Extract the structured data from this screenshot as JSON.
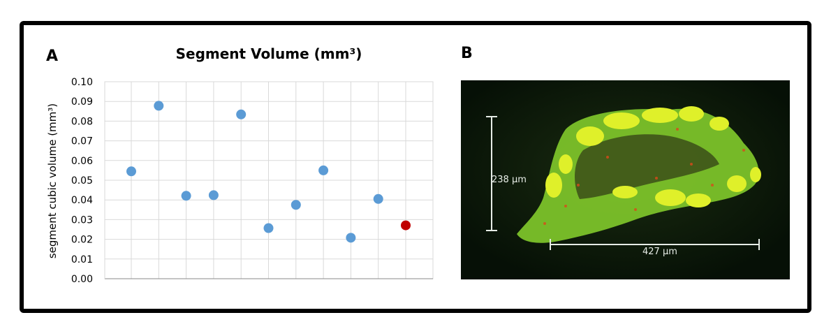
{
  "panel_a": {
    "letter": "A"
  },
  "panel_b": {
    "letter": "B",
    "scalebar_vertical": "238 µm",
    "scalebar_horizontal": "427 µm"
  },
  "colors": {
    "point": "#5b9bd5",
    "highlight": "#c00000"
  },
  "chart_data": {
    "type": "scatter",
    "title": "Segment Volume (mm³)",
    "xlabel": "",
    "ylabel": "segment cubic volume (mm³)",
    "ylim": [
      0,
      0.1
    ],
    "yticks": [
      "0.00",
      "0.01",
      "0.02",
      "0.03",
      "0.04",
      "0.05",
      "0.06",
      "0.07",
      "0.08",
      "0.09",
      "0.10"
    ],
    "grid": true,
    "x": [
      1,
      2,
      3,
      4,
      5,
      6,
      7,
      8,
      9,
      10,
      11
    ],
    "values": [
      0.0545,
      0.0878,
      0.0421,
      0.0424,
      0.0834,
      0.0257,
      0.0375,
      0.055,
      0.0208,
      0.0405,
      0.0271
    ],
    "highlight_index": 10
  }
}
